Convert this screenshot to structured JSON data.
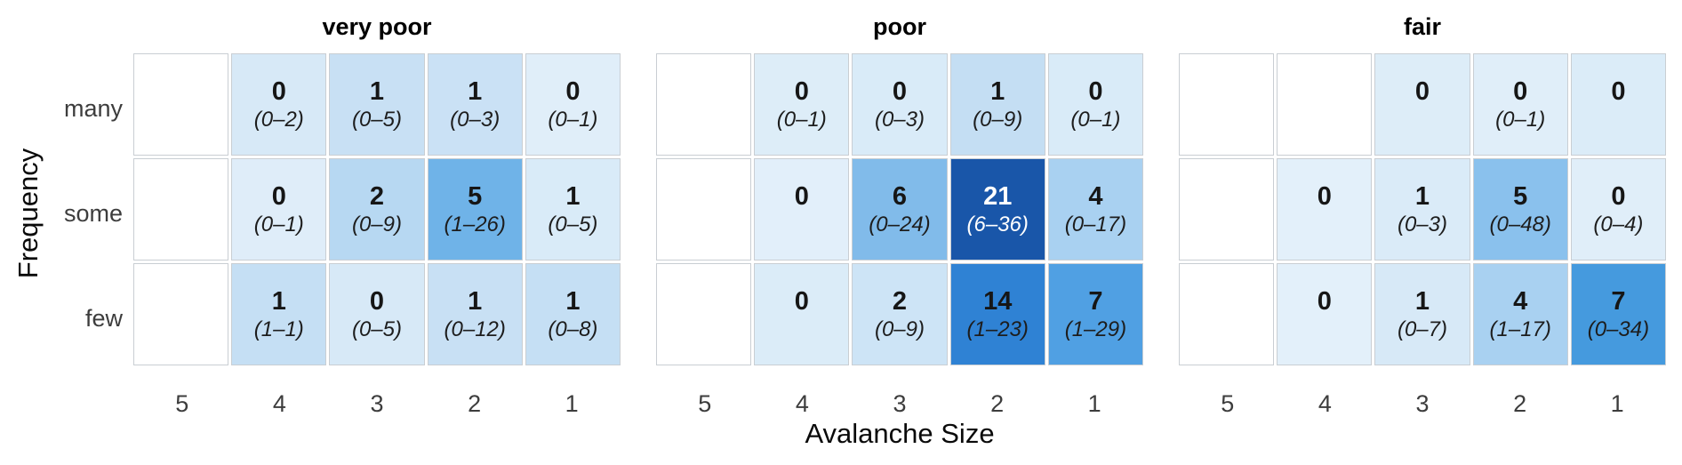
{
  "chart_data": {
    "type": "heatmap",
    "xlabel": "Avalanche Size",
    "ylabel": "Frequency",
    "x_categories": [
      "5",
      "4",
      "3",
      "2",
      "1"
    ],
    "y_categories": [
      "many",
      "some",
      "few"
    ],
    "cell_format": "count with (low–high) interval; blank cells have no data",
    "legend_position": "none",
    "panels": [
      {
        "title": "very poor",
        "rows": [
          [
            null,
            {
              "count": "0",
              "range": "(0–2)",
              "bg": "#d7e9f7"
            },
            {
              "count": "1",
              "range": "(0–5)",
              "bg": "#c8e0f4"
            },
            {
              "count": "1",
              "range": "(0–3)",
              "bg": "#cae1f5"
            },
            {
              "count": "0",
              "range": "(0–1)",
              "bg": "#e0eef9"
            }
          ],
          [
            null,
            {
              "count": "0",
              "range": "(0–1)",
              "bg": "#dfedf9"
            },
            {
              "count": "2",
              "range": "(0–9)",
              "bg": "#b7d8f2"
            },
            {
              "count": "5",
              "range": "(1–26)",
              "bg": "#6fb3e8"
            },
            {
              "count": "1",
              "range": "(0–5)",
              "bg": "#d9ebf8"
            }
          ],
          [
            null,
            {
              "count": "1",
              "range": "(1–1)",
              "bg": "#c5dff4"
            },
            {
              "count": "0",
              "range": "(0–5)",
              "bg": "#d7e9f7"
            },
            {
              "count": "1",
              "range": "(0–12)",
              "bg": "#c8e0f4"
            },
            {
              "count": "1",
              "range": "(0–8)",
              "bg": "#c5dff4"
            }
          ]
        ]
      },
      {
        "title": "poor",
        "rows": [
          [
            null,
            {
              "count": "0",
              "range": "(0–1)",
              "bg": "#ddedf8"
            },
            {
              "count": "0",
              "range": "(0–3)",
              "bg": "#d9ebf8"
            },
            {
              "count": "1",
              "range": "(0–9)",
              "bg": "#c4def3"
            },
            {
              "count": "0",
              "range": "(0–1)",
              "bg": "#d9ebf8"
            }
          ],
          [
            null,
            {
              "count": "0",
              "range": "",
              "bg": "#e2effa"
            },
            {
              "count": "6",
              "range": "(0–24)",
              "bg": "#81bbea"
            },
            {
              "count": "21",
              "range": "(6–36)",
              "bg": "#1956a9",
              "fg": "#ffffff"
            },
            {
              "count": "4",
              "range": "(0–17)",
              "bg": "#a9d1f1"
            }
          ],
          [
            null,
            {
              "count": "0",
              "range": "",
              "bg": "#dbecf8"
            },
            {
              "count": "2",
              "range": "(0–9)",
              "bg": "#cde4f6"
            },
            {
              "count": "14",
              "range": "(1–23)",
              "bg": "#2f82d4"
            },
            {
              "count": "7",
              "range": "(1–29)",
              "bg": "#50a0e3"
            }
          ]
        ]
      },
      {
        "title": "fair",
        "rows": [
          [
            null,
            null,
            {
              "count": "0",
              "range": "",
              "bg": "#ddedf8"
            },
            {
              "count": "0",
              "range": "(0–1)",
              "bg": "#e0eef9"
            },
            {
              "count": "0",
              "range": "",
              "bg": "#dbecf8"
            }
          ],
          [
            null,
            {
              "count": "0",
              "range": "",
              "bg": "#e3f0fa"
            },
            {
              "count": "1",
              "range": "(0–3)",
              "bg": "#daebf8"
            },
            {
              "count": "5",
              "range": "(0–48)",
              "bg": "#8ac1ed"
            },
            {
              "count": "0",
              "range": "(0–4)",
              "bg": "#e0eef9"
            }
          ],
          [
            null,
            {
              "count": "0",
              "range": "",
              "bg": "#e3f0fa"
            },
            {
              "count": "1",
              "range": "(0–7)",
              "bg": "#d7e9f7"
            },
            {
              "count": "4",
              "range": "(1–17)",
              "bg": "#a9d1f1"
            },
            {
              "count": "7",
              "range": "(0–34)",
              "bg": "#459ade"
            }
          ]
        ]
      }
    ],
    "colors": {
      "grid_line": "#c9ced3",
      "tick_label": "#3d3d3d",
      "panel_title": "#000000",
      "axis_label": "#0a0a0a",
      "empty_cell": "#ffffff",
      "max_cell": "#1956a9"
    }
  }
}
